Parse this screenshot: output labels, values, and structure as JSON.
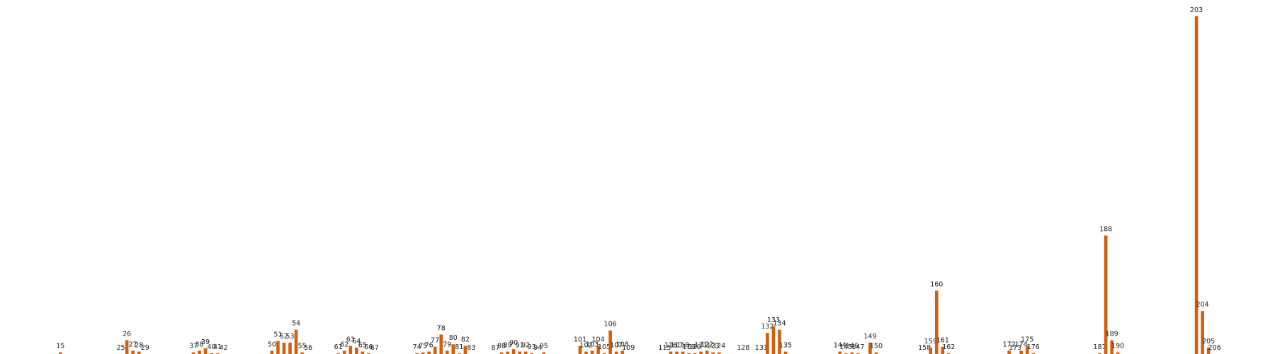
{
  "chart_data": {
    "type": "bar",
    "color": "#d35f0e",
    "x": [
      15,
      25,
      26,
      27,
      28,
      29,
      37,
      38,
      39,
      40,
      41,
      42,
      50,
      51,
      52,
      53,
      54,
      55,
      56,
      61,
      62,
      63,
      64,
      65,
      66,
      67,
      74,
      75,
      76,
      77,
      78,
      79,
      80,
      81,
      82,
      83,
      87,
      88,
      89,
      90,
      91,
      92,
      93,
      94,
      95,
      101,
      102,
      103,
      104,
      105,
      106,
      107,
      108,
      109,
      115,
      116,
      117,
      118,
      119,
      120,
      121,
      122,
      123,
      124,
      128,
      131,
      132,
      133,
      134,
      135,
      144,
      145,
      146,
      147,
      149,
      150,
      158,
      159,
      160,
      161,
      162,
      172,
      173,
      174,
      175,
      176,
      187,
      188,
      189,
      190,
      203,
      204,
      205,
      206
    ],
    "values": [
      2,
      0,
      17,
      4,
      3,
      0,
      2,
      4,
      7,
      1,
      1,
      0,
      4,
      16,
      14,
      14,
      30,
      2,
      0,
      1,
      4,
      10,
      8,
      3,
      1,
      0,
      1,
      2,
      3,
      9,
      24,
      4,
      12,
      1,
      10,
      0,
      0,
      2,
      3,
      6,
      3,
      3,
      1,
      0,
      2,
      10,
      3,
      4,
      10,
      1,
      29,
      3,
      4,
      0,
      0,
      3,
      3,
      3,
      1,
      1,
      3,
      4,
      2,
      2,
      0,
      0,
      26,
      34,
      30,
      3,
      3,
      1,
      2,
      1,
      14,
      2,
      0,
      8,
      78,
      9,
      1,
      4,
      0,
      4,
      10,
      1,
      1,
      146,
      17,
      2,
      416,
      53,
      8,
      0
    ],
    "xlim": [
      5,
      216
    ],
    "ylim": [
      0,
      416
    ]
  }
}
